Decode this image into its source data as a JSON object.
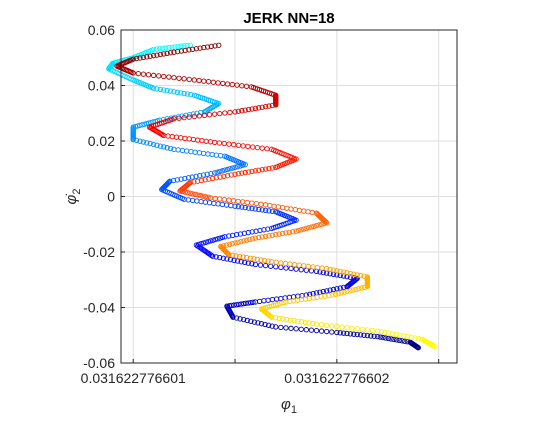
{
  "chart_data": {
    "type": "scatter",
    "title": "JERK NN=18",
    "xlabel": "φ",
    "xlabel_sub": "1",
    "ylabel": "φ̇",
    "ylabel_sub": "2",
    "xticks": [
      {
        "value": 0.031622776601,
        "label": "0.031622776601"
      },
      {
        "value": 0.031622776602,
        "label": "0.031622776602"
      }
    ],
    "xlim": [
      0.03162277660094,
      0.03162277660259
    ],
    "ylim": [
      -0.06,
      0.06
    ],
    "yticks": [
      {
        "value": 0.06,
        "label": "0.06"
      },
      {
        "value": 0.04,
        "label": "0.04"
      },
      {
        "value": 0.02,
        "label": "0.02"
      },
      {
        "value": 0.0,
        "label": "0"
      },
      {
        "value": -0.02,
        "label": "-0.02"
      },
      {
        "value": -0.04,
        "label": "-0.04"
      },
      {
        "value": -0.06,
        "label": "-0.06"
      }
    ],
    "grid": true,
    "colormap": "jet",
    "series": [
      {
        "color_start": "#00008f",
        "color_end": "#00ffff",
        "points": [
          [
            0.0316227766024,
            -0.0545
          ],
          [
            0.03162277660236,
            -0.0525
          ],
          [
            0.0316227766022,
            -0.0505
          ],
          [
            0.031622776602,
            -0.049
          ],
          [
            0.0316227766017,
            -0.047
          ],
          [
            0.03162277660149,
            -0.0435
          ],
          [
            0.03162277660146,
            -0.0395
          ],
          [
            0.0316227766016,
            -0.038
          ],
          [
            0.03162277660185,
            -0.0355
          ],
          [
            0.03162277660205,
            -0.0325
          ],
          [
            0.0316227766021,
            -0.0295
          ],
          [
            0.0316227766019,
            -0.027
          ],
          [
            0.0316227766016,
            -0.0245
          ],
          [
            0.03162277660139,
            -0.0215
          ],
          [
            0.03162277660131,
            -0.0175
          ],
          [
            0.03162277660145,
            -0.0145
          ],
          [
            0.03162277660168,
            -0.0115
          ],
          [
            0.0316227766018,
            -0.0085
          ],
          [
            0.0316227766017,
            -0.0055
          ],
          [
            0.0316227766015,
            -0.0035
          ],
          [
            0.03162277660125,
            -0.001
          ],
          [
            0.03162277660114,
            0.0025
          ],
          [
            0.03162277660118,
            0.0055
          ],
          [
            0.0316227766014,
            0.0085
          ],
          [
            0.03162277660155,
            0.0115
          ],
          [
            0.03162277660145,
            0.0145
          ],
          [
            0.0316227766012,
            0.017
          ],
          [
            0.031622776601,
            0.0205
          ],
          [
            0.031622776601,
            0.025
          ],
          [
            0.03162277660113,
            0.0275
          ],
          [
            0.03162277660135,
            0.0305
          ],
          [
            0.03162277660142,
            0.0335
          ],
          [
            0.0316227766013,
            0.0365
          ],
          [
            0.0316227766011,
            0.039
          ],
          [
            0.031622776601,
            0.042
          ],
          [
            0.03162277660088,
            0.046
          ],
          [
            0.0316227766009,
            0.048
          ],
          [
            0.031622776601,
            0.05
          ],
          [
            0.0316227766011,
            0.053
          ],
          [
            0.03162277660128,
            0.0545
          ]
        ]
      },
      {
        "color_start": "#7f0000",
        "color_end": "#7fff7f",
        "points": [
          [
            0.03162277660142,
            0.0545
          ],
          [
            0.0316227766012,
            0.052
          ],
          [
            0.031622776601,
            0.0495
          ],
          [
            0.03162277660092,
            0.047
          ],
          [
            0.031622776601,
            0.0445
          ],
          [
            0.0316227766013,
            0.042
          ],
          [
            0.03162277660158,
            0.0395
          ],
          [
            0.0316227766017,
            0.0365
          ],
          [
            0.0316227766017,
            0.033
          ],
          [
            0.0316227766015,
            0.0305
          ],
          [
            0.0316227766012,
            0.028
          ],
          [
            0.03162277660108,
            0.025
          ],
          [
            0.03162277660115,
            0.022
          ],
          [
            0.0316227766014,
            0.0195
          ],
          [
            0.03162277660168,
            0.017
          ],
          [
            0.0316227766018,
            0.0135
          ],
          [
            0.0316227766017,
            0.0105
          ],
          [
            0.0316227766015,
            0.008
          ],
          [
            0.03162277660128,
            0.005
          ],
          [
            0.03162277660123,
            0.002
          ],
          [
            0.03162277660138,
            -0.0005
          ],
          [
            0.03162277660165,
            -0.003
          ],
          [
            0.0316227766019,
            -0.006
          ],
          [
            0.03162277660195,
            -0.0095
          ],
          [
            0.0316227766018,
            -0.0125
          ],
          [
            0.0316227766016,
            -0.015
          ],
          [
            0.03162277660143,
            -0.018
          ],
          [
            0.03162277660147,
            -0.021
          ],
          [
            0.03162277660168,
            -0.0235
          ],
          [
            0.03162277660195,
            -0.026
          ],
          [
            0.03162277660215,
            -0.029
          ],
          [
            0.03162277660215,
            -0.0325
          ],
          [
            0.03162277660198,
            -0.0355
          ],
          [
            0.03162277660175,
            -0.038
          ],
          [
            0.03162277660163,
            -0.0405
          ],
          [
            0.03162277660168,
            -0.0435
          ],
          [
            0.0316227766019,
            -0.046
          ],
          [
            0.0316227766022,
            -0.0485
          ],
          [
            0.03162277660242,
            -0.0515
          ],
          [
            0.03162277660248,
            -0.054
          ]
        ]
      }
    ]
  }
}
